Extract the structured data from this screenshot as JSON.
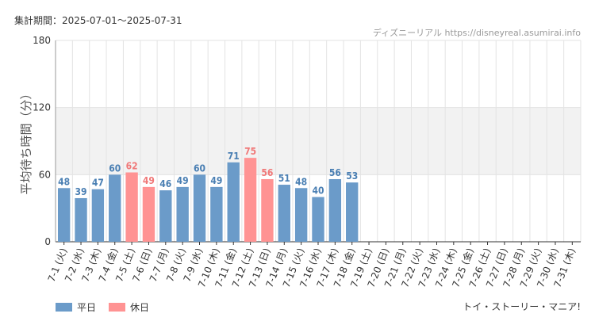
{
  "header": {
    "period": "集計期間：2025-07-01～2025-07-31",
    "site": "ディズニーリアル https://disneyreal.asumirai.info"
  },
  "footer": {
    "attraction": "トイ・ストーリー・マニア!"
  },
  "colors": {
    "weekday": "#6b9bc9",
    "holiday": "#ff9393",
    "weekday_text": "#4a7fb3",
    "holiday_text": "#f07878",
    "band": "#f2f2f2",
    "grid": "#e3e3e3"
  },
  "chart_data": {
    "type": "bar",
    "title": "",
    "ylabel": "平均待ち時間（分）",
    "xlabel": "",
    "ylim": [
      0,
      180
    ],
    "yticks": [
      0,
      60,
      120,
      180
    ],
    "shaded_band": [
      60,
      120
    ],
    "grid": true,
    "legend_placement": "bottom-left",
    "categories": [
      "7-1 (火)",
      "7-2 (水)",
      "7-3 (木)",
      "7-4 (金)",
      "7-5 (土)",
      "7-6 (日)",
      "7-7 (月)",
      "7-8 (火)",
      "7-9 (水)",
      "7-10 (木)",
      "7-11 (金)",
      "7-12 (土)",
      "7-13 (日)",
      "7-14 (月)",
      "7-15 (火)",
      "7-16 (水)",
      "7-17 (木)",
      "7-18 (金)",
      "7-19 (土)",
      "7-20 (日)",
      "7-21 (月)",
      "7-22 (火)",
      "7-23 (水)",
      "7-24 (木)",
      "7-25 (金)",
      "7-26 (土)",
      "7-27 (日)",
      "7-28 (月)",
      "7-29 (火)",
      "7-30 (水)",
      "7-31 (木)"
    ],
    "holiday": [
      false,
      false,
      false,
      false,
      true,
      true,
      false,
      false,
      false,
      false,
      false,
      true,
      true,
      false,
      false,
      false,
      false,
      false,
      true,
      true,
      true,
      false,
      false,
      false,
      false,
      true,
      true,
      false,
      false,
      false,
      false
    ],
    "values": [
      48,
      39,
      47,
      60,
      62,
      49,
      46,
      49,
      60,
      49,
      71,
      75,
      56,
      51,
      48,
      40,
      56,
      53,
      null,
      null,
      null,
      null,
      null,
      null,
      null,
      null,
      null,
      null,
      null,
      null,
      null
    ],
    "series": [
      {
        "name": "平日"
      },
      {
        "name": "休日"
      }
    ]
  }
}
